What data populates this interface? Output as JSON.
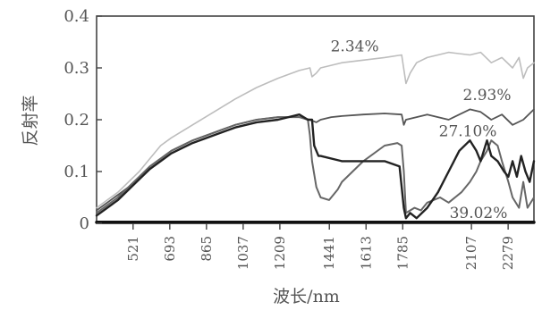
{
  "chart_data": {
    "type": "line",
    "xlabel": "波长/nm",
    "ylabel": "反射率",
    "xlim": [
      350,
      2400
    ],
    "ylim": [
      0,
      0.4
    ],
    "yticks": [
      0,
      0.1,
      0.2,
      0.3,
      0.4
    ],
    "ytick_labels": [
      "0",
      "0.1",
      "0.2",
      "0.3",
      "0.4"
    ],
    "xticks": [
      521,
      693,
      865,
      1037,
      1209,
      1441,
      1613,
      1785,
      2107,
      2279
    ],
    "xtick_labels": [
      "521",
      "693",
      "865",
      "1037",
      "1209",
      "1441",
      "1613",
      "1785",
      "2107",
      "2279"
    ],
    "grid": false,
    "legend": "none",
    "series": [
      {
        "color": "#bdbdbd",
        "width": 1.6,
        "x": [
          350,
          400,
          450,
          500,
          550,
          600,
          650,
          700,
          800,
          900,
          1000,
          1100,
          1200,
          1300,
          1350,
          1360,
          1380,
          1400,
          1450,
          1500,
          1600,
          1700,
          1780,
          1800,
          1820,
          1850,
          1900,
          2000,
          2100,
          2150,
          2200,
          2250,
          2300,
          2330,
          2350,
          2370,
          2400
        ],
        "y": [
          0.03,
          0.045,
          0.06,
          0.08,
          0.1,
          0.125,
          0.15,
          0.165,
          0.19,
          0.215,
          0.24,
          0.262,
          0.28,
          0.295,
          0.3,
          0.283,
          0.29,
          0.3,
          0.305,
          0.31,
          0.315,
          0.32,
          0.325,
          0.27,
          0.29,
          0.31,
          0.32,
          0.33,
          0.325,
          0.33,
          0.31,
          0.32,
          0.3,
          0.32,
          0.28,
          0.3,
          0.31
        ]
      },
      {
        "color": "#555555",
        "width": 1.8,
        "x": [
          350,
          400,
          450,
          500,
          550,
          600,
          650,
          700,
          800,
          900,
          1000,
          1100,
          1200,
          1300,
          1350,
          1380,
          1400,
          1450,
          1500,
          1600,
          1700,
          1780,
          1790,
          1800,
          1850,
          1900,
          2000,
          2050,
          2100,
          2150,
          2200,
          2250,
          2300,
          2350,
          2400
        ],
        "y": [
          0.025,
          0.04,
          0.055,
          0.07,
          0.09,
          0.11,
          0.125,
          0.14,
          0.16,
          0.175,
          0.19,
          0.2,
          0.205,
          0.205,
          0.2,
          0.195,
          0.2,
          0.205,
          0.207,
          0.21,
          0.212,
          0.21,
          0.19,
          0.2,
          0.205,
          0.21,
          0.2,
          0.21,
          0.22,
          0.215,
          0.2,
          0.21,
          0.19,
          0.2,
          0.22
        ]
      },
      {
        "color": "#666666",
        "width": 2.0,
        "x": [
          350,
          400,
          450,
          500,
          550,
          600,
          650,
          700,
          800,
          900,
          1000,
          1100,
          1200,
          1300,
          1340,
          1350,
          1360,
          1380,
          1400,
          1440,
          1480,
          1500,
          1600,
          1700,
          1760,
          1780,
          1790,
          1800,
          1840,
          1870,
          1900,
          1960,
          2000,
          2060,
          2100,
          2130,
          2150,
          2180,
          2200,
          2230,
          2250,
          2280,
          2300,
          2330,
          2350,
          2370,
          2400
        ],
        "y": [
          0.02,
          0.035,
          0.05,
          0.07,
          0.09,
          0.11,
          0.125,
          0.14,
          0.16,
          0.175,
          0.19,
          0.2,
          0.205,
          0.205,
          0.2,
          0.17,
          0.12,
          0.07,
          0.05,
          0.045,
          0.065,
          0.08,
          0.12,
          0.15,
          0.155,
          0.15,
          0.1,
          0.02,
          0.03,
          0.025,
          0.04,
          0.05,
          0.04,
          0.06,
          0.08,
          0.1,
          0.12,
          0.14,
          0.16,
          0.15,
          0.12,
          0.08,
          0.05,
          0.03,
          0.08,
          0.03,
          0.05
        ]
      },
      {
        "color": "#222222",
        "width": 2.4,
        "x": [
          350,
          400,
          450,
          500,
          550,
          600,
          650,
          700,
          800,
          900,
          1000,
          1100,
          1200,
          1300,
          1340,
          1360,
          1370,
          1380,
          1390,
          1400,
          1500,
          1600,
          1700,
          1770,
          1780,
          1790,
          1800,
          1820,
          1850,
          1900,
          1950,
          2000,
          2050,
          2100,
          2130,
          2150,
          2180,
          2200,
          2230,
          2260,
          2280,
          2300,
          2320,
          2340,
          2360,
          2380,
          2400
        ],
        "y": [
          0.015,
          0.03,
          0.045,
          0.065,
          0.085,
          0.105,
          0.12,
          0.135,
          0.155,
          0.17,
          0.185,
          0.195,
          0.2,
          0.21,
          0.2,
          0.2,
          0.15,
          0.14,
          0.13,
          0.13,
          0.12,
          0.12,
          0.12,
          0.11,
          0.07,
          0.03,
          0.01,
          0.02,
          0.01,
          0.03,
          0.06,
          0.1,
          0.14,
          0.16,
          0.14,
          0.12,
          0.16,
          0.13,
          0.12,
          0.1,
          0.09,
          0.12,
          0.09,
          0.13,
          0.1,
          0.08,
          0.12
        ]
      },
      {
        "color": "#111111",
        "width": 3.5,
        "x": [
          350,
          2400
        ],
        "y": [
          0.002,
          0.002
        ]
      }
    ],
    "annotations": [
      {
        "text": "2.34%",
        "x": 1560,
        "y": 0.332
      },
      {
        "text": "2.93%",
        "x": 2180,
        "y": 0.238
      },
      {
        "text": "27.10%",
        "x": 2090,
        "y": 0.168
      },
      {
        "text": "39.02%",
        "x": 2140,
        "y": 0.01
      }
    ]
  }
}
